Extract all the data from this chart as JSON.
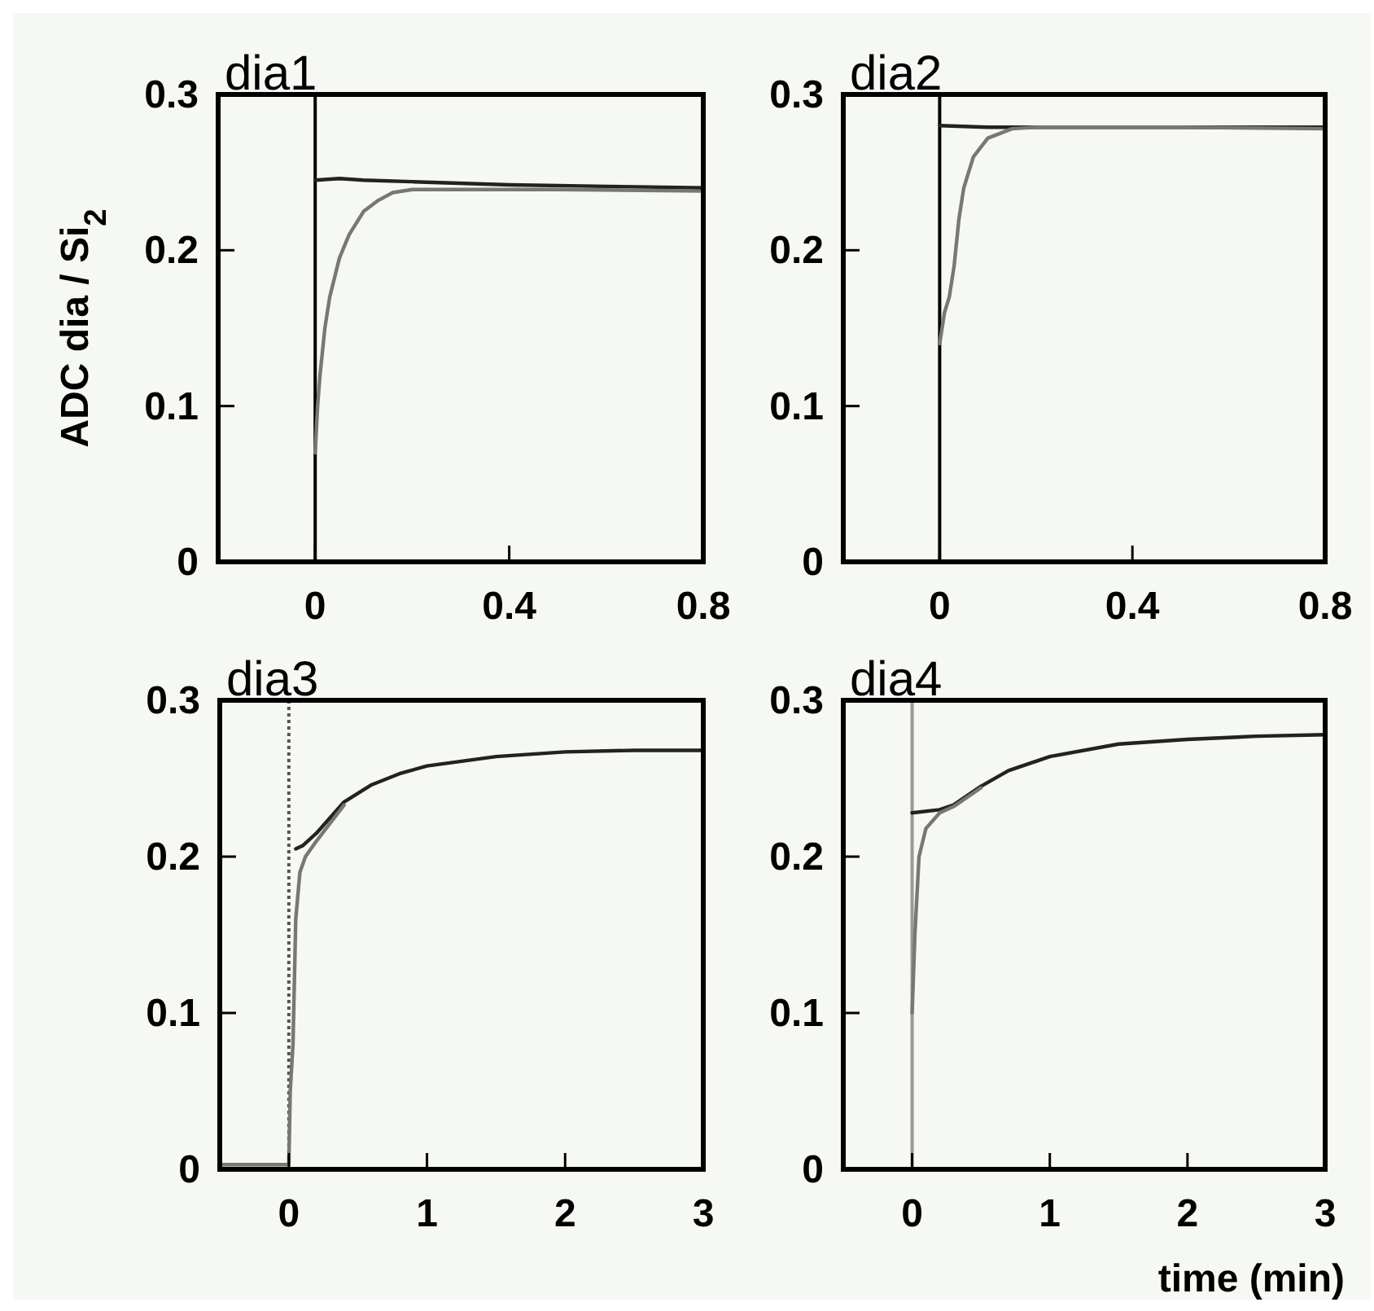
{
  "chart_data": [
    {
      "type": "line",
      "title": "dia1",
      "ylabel": "ADC dia / Si$_{2}$",
      "xlim": [
        -0.2,
        0.8
      ],
      "xticks": [
        0,
        0.4,
        0.8
      ],
      "ylim": [
        0,
        0.3
      ],
      "yticks": [
        0,
        0.1,
        0.2,
        0.3
      ],
      "grid": false,
      "line_style": "solid",
      "marker": "none",
      "ref_lines": [
        {
          "axis": "x",
          "value": 0,
          "color": "#000000",
          "line_style": "solid"
        }
      ],
      "series": [
        {
          "color": "#222222",
          "x": [
            0,
            0.05,
            0.1,
            0.2,
            0.4,
            0.6,
            0.8
          ],
          "values": [
            0.245,
            0.246,
            0.245,
            0.244,
            0.242,
            0.241,
            0.24
          ]
        },
        {
          "color": "#777777",
          "x": [
            0,
            0.005,
            0.01,
            0.02,
            0.03,
            0.05,
            0.07,
            0.1,
            0.13,
            0.16,
            0.2,
            0.3,
            0.5,
            0.8
          ],
          "values": [
            0.07,
            0.1,
            0.12,
            0.15,
            0.17,
            0.195,
            0.21,
            0.225,
            0.232,
            0.237,
            0.239,
            0.239,
            0.239,
            0.238
          ]
        }
      ]
    },
    {
      "type": "line",
      "title": "dia2",
      "xlim": [
        -0.2,
        0.8
      ],
      "xticks": [
        0,
        0.4,
        0.8
      ],
      "ylim": [
        0,
        0.3
      ],
      "yticks": [
        0,
        0.1,
        0.2,
        0.3
      ],
      "grid": false,
      "line_style": "solid",
      "marker": "none",
      "ref_lines": [
        {
          "axis": "x",
          "value": 0,
          "color": "#000000",
          "line_style": "solid"
        }
      ],
      "series": [
        {
          "color": "#222222",
          "x": [
            0,
            0.1,
            0.2,
            0.4,
            0.6,
            0.8
          ],
          "values": [
            0.28,
            0.279,
            0.279,
            0.279,
            0.279,
            0.279
          ]
        },
        {
          "color": "#777777",
          "x": [
            0,
            0.01,
            0.02,
            0.03,
            0.04,
            0.05,
            0.07,
            0.1,
            0.15,
            0.2,
            0.5,
            0.8
          ],
          "values": [
            0.14,
            0.16,
            0.17,
            0.19,
            0.22,
            0.24,
            0.26,
            0.272,
            0.278,
            0.279,
            0.279,
            0.278
          ]
        }
      ]
    },
    {
      "type": "line",
      "title": "dia3",
      "xlim": [
        -0.5,
        3
      ],
      "xticks": [
        0,
        1,
        2,
        3
      ],
      "ylim": [
        0,
        0.3
      ],
      "yticks": [
        0,
        0.1,
        0.2,
        0.3
      ],
      "grid": false,
      "line_style": "solid",
      "marker": "none",
      "ref_lines": [
        {
          "axis": "x",
          "value": 0,
          "color": "#555555",
          "line_style": "dotted"
        }
      ],
      "series": [
        {
          "color": "#222222",
          "x": [
            0.05,
            0.1,
            0.2,
            0.4,
            0.6,
            0.8,
            1,
            1.5,
            2,
            2.5,
            3
          ],
          "values": [
            0.205,
            0.207,
            0.215,
            0.235,
            0.246,
            0.253,
            0.258,
            0.264,
            0.267,
            0.268,
            0.268
          ]
        },
        {
          "color": "#777777",
          "x": [
            -0.5,
            -0.2,
            0,
            0.01,
            0.03,
            0.05,
            0.08,
            0.12,
            0.2,
            0.4
          ],
          "values": [
            0.003,
            0.003,
            0.003,
            0.05,
            0.08,
            0.16,
            0.19,
            0.2,
            0.21,
            0.233
          ]
        }
      ]
    },
    {
      "type": "line",
      "title": "dia4",
      "xlabel": "time (min)",
      "xlim": [
        -0.5,
        3
      ],
      "xticks": [
        0,
        1,
        2,
        3
      ],
      "ylim": [
        0,
        0.3
      ],
      "yticks": [
        0,
        0.1,
        0.2,
        0.3
      ],
      "grid": false,
      "line_style": "solid",
      "marker": "none",
      "ref_lines": [
        {
          "axis": "x",
          "value": 0,
          "color": "#999999",
          "line_style": "solid"
        }
      ],
      "series": [
        {
          "color": "#222222",
          "x": [
            0,
            0.2,
            0.3,
            0.5,
            0.7,
            1,
            1.5,
            2,
            2.5,
            3
          ],
          "values": [
            0.228,
            0.23,
            0.233,
            0.245,
            0.255,
            0.264,
            0.272,
            0.275,
            0.277,
            0.278
          ]
        },
        {
          "color": "#777777",
          "x": [
            0,
            0.02,
            0.05,
            0.1,
            0.2,
            0.3,
            0.5
          ],
          "values": [
            0.1,
            0.15,
            0.2,
            0.218,
            0.228,
            0.232,
            0.244
          ]
        }
      ]
    }
  ]
}
